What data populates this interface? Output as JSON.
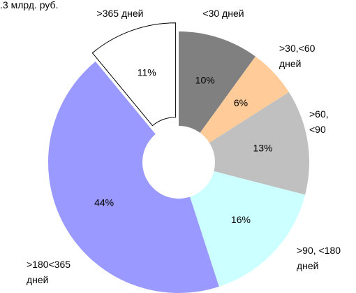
{
  "chart_data": {
    "type": "donut",
    "title": ".3 млрд. руб.",
    "categories": [
      "<30 дней",
      ">30,<60\nдней",
      ">60,\n<90",
      ">90, <180\nдней",
      ">180<365\nдней",
      ">365 дней"
    ],
    "values": [
      10,
      6,
      13,
      16,
      44,
      11
    ],
    "value_labels": [
      "10%",
      "6%",
      "13%",
      "16%",
      "44%",
      "11%"
    ],
    "colors": [
      "#808080",
      "#ffcc99",
      "#c0c0c0",
      "#ccffff",
      "#9999ff",
      "#ffffff"
    ],
    "exploded_slice": 5
  }
}
